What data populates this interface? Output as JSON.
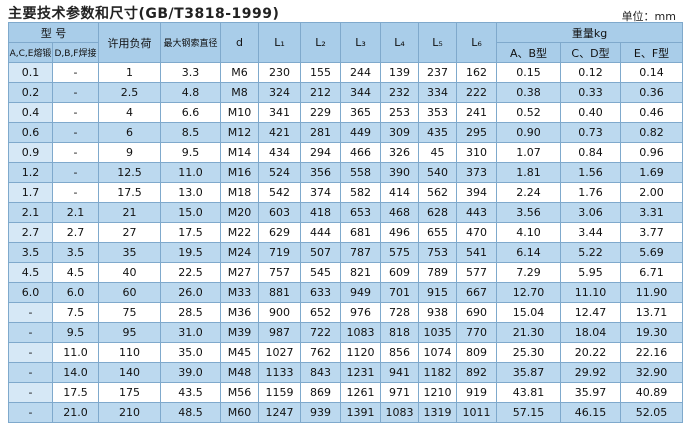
{
  "header": {
    "title": "主要技术参数和尺寸(GB/T3818-1999)",
    "unit": "单位：mm"
  },
  "table": {
    "head_top": [
      "型 号",
      "许用负荷",
      "最大钢索直径",
      "d",
      "L₁",
      "L₂",
      "L₃",
      "L₄",
      "L₅",
      "L₆",
      "重量kg"
    ],
    "head_sub": [
      "A,C,E熔锻",
      "D,B,F焊接",
      "A、B型",
      "C、D型",
      "E、F型"
    ],
    "rows": [
      [
        "0.1",
        "-",
        "1",
        "3.3",
        "M6",
        "230",
        "155",
        "244",
        "139",
        "237",
        "162",
        "0.15",
        "0.12",
        "0.14"
      ],
      [
        "0.2",
        "-",
        "2.5",
        "4.8",
        "M8",
        "324",
        "212",
        "344",
        "232",
        "334",
        "222",
        "0.38",
        "0.33",
        "0.36"
      ],
      [
        "0.4",
        "-",
        "4",
        "6.6",
        "M10",
        "341",
        "229",
        "365",
        "253",
        "353",
        "241",
        "0.52",
        "0.40",
        "0.46"
      ],
      [
        "0.6",
        "-",
        "6",
        "8.5",
        "M12",
        "421",
        "281",
        "449",
        "309",
        "435",
        "295",
        "0.90",
        "0.73",
        "0.82"
      ],
      [
        "0.9",
        "-",
        "9",
        "9.5",
        "M14",
        "434",
        "294",
        "466",
        "326",
        "45",
        "310",
        "1.07",
        "0.84",
        "0.96"
      ],
      [
        "1.2",
        "-",
        "12.5",
        "11.0",
        "M16",
        "524",
        "356",
        "558",
        "390",
        "540",
        "373",
        "1.81",
        "1.56",
        "1.69"
      ],
      [
        "1.7",
        "-",
        "17.5",
        "13.0",
        "M18",
        "542",
        "374",
        "582",
        "414",
        "562",
        "394",
        "2.24",
        "1.76",
        "2.00"
      ],
      [
        "2.1",
        "2.1",
        "21",
        "15.0",
        "M20",
        "603",
        "418",
        "653",
        "468",
        "628",
        "443",
        "3.56",
        "3.06",
        "3.31"
      ],
      [
        "2.7",
        "2.7",
        "27",
        "17.5",
        "M22",
        "629",
        "444",
        "681",
        "496",
        "655",
        "470",
        "4.10",
        "3.44",
        "3.77"
      ],
      [
        "3.5",
        "3.5",
        "35",
        "19.5",
        "M24",
        "719",
        "507",
        "787",
        "575",
        "753",
        "541",
        "6.14",
        "5.22",
        "5.69"
      ],
      [
        "4.5",
        "4.5",
        "40",
        "22.5",
        "M27",
        "757",
        "545",
        "821",
        "609",
        "789",
        "577",
        "7.29",
        "5.95",
        "6.71"
      ],
      [
        "6.0",
        "6.0",
        "60",
        "26.0",
        "M33",
        "881",
        "633",
        "949",
        "701",
        "915",
        "667",
        "12.70",
        "11.10",
        "11.90"
      ],
      [
        "-",
        "7.5",
        "75",
        "28.5",
        "M36",
        "900",
        "652",
        "976",
        "728",
        "938",
        "690",
        "15.04",
        "12.47",
        "13.71"
      ],
      [
        "-",
        "9.5",
        "95",
        "31.0",
        "M39",
        "987",
        "722",
        "1083",
        "818",
        "1035",
        "770",
        "21.30",
        "18.04",
        "19.30"
      ],
      [
        "-",
        "11.0",
        "110",
        "35.0",
        "M45",
        "1027",
        "762",
        "1120",
        "856",
        "1074",
        "809",
        "25.30",
        "20.22",
        "22.16"
      ],
      [
        "-",
        "14.0",
        "140",
        "39.0",
        "M48",
        "1133",
        "843",
        "1231",
        "941",
        "1182",
        "892",
        "35.87",
        "29.92",
        "32.90"
      ],
      [
        "-",
        "17.5",
        "175",
        "43.5",
        "M56",
        "1159",
        "869",
        "1261",
        "971",
        "1210",
        "919",
        "43.81",
        "35.97",
        "40.89"
      ],
      [
        "-",
        "21.0",
        "210",
        "48.5",
        "M60",
        "1247",
        "939",
        "1391",
        "1083",
        "1319",
        "1011",
        "57.15",
        "46.15",
        "52.05"
      ]
    ]
  }
}
